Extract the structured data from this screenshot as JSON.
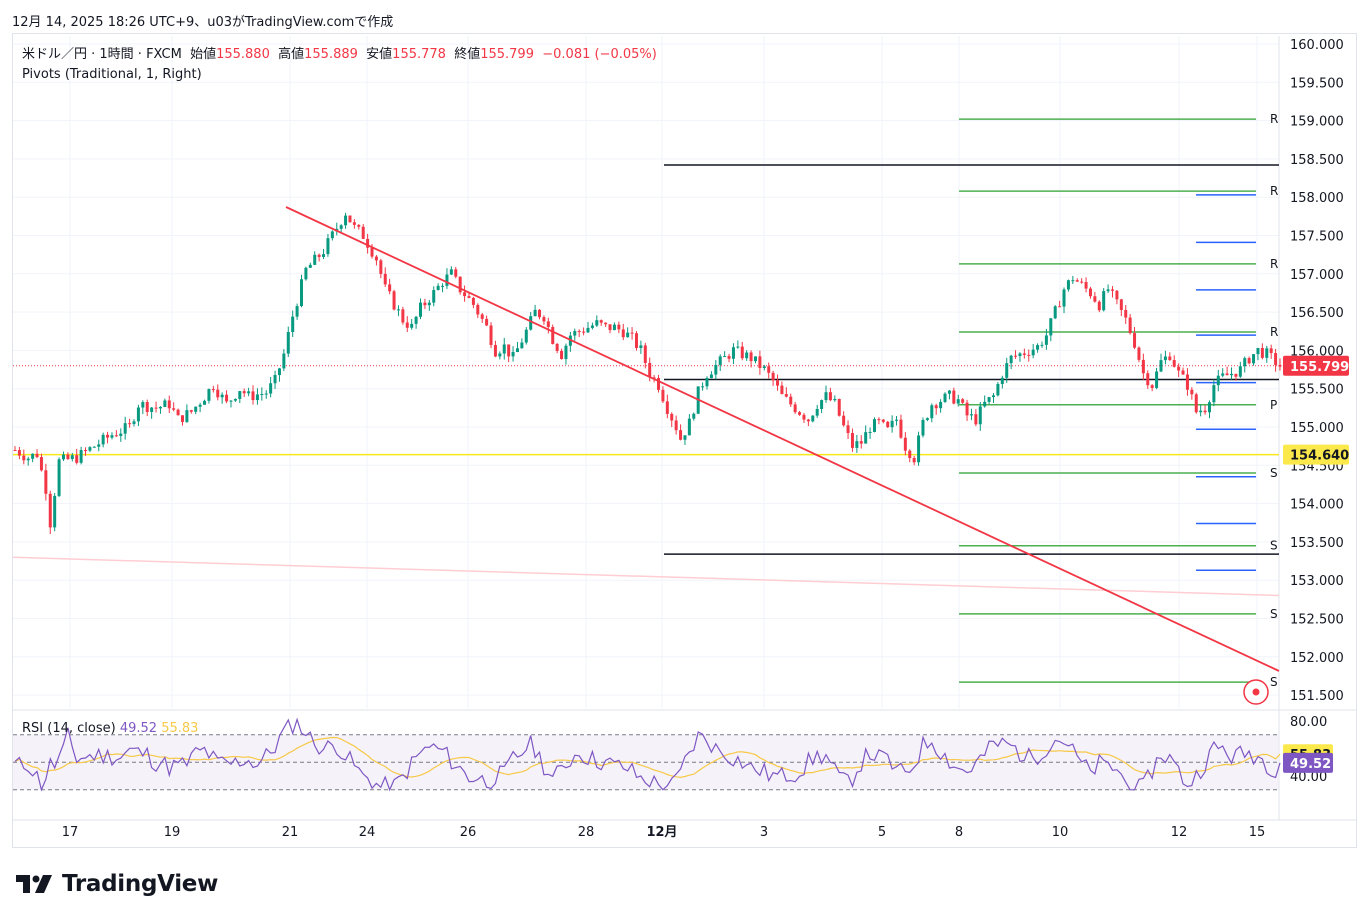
{
  "caption": "12月 14, 2025 18:26 UTC+9、u03がTradingView.comで作成",
  "legend": {
    "symbol": "米ドル／円 · 1時間 · FXCM",
    "open_label": "始値",
    "open": "155.880",
    "high_label": "高値",
    "high": "155.889",
    "low_label": "安値",
    "low": "155.778",
    "close_label": "終値",
    "close": "155.799",
    "change": "−0.081 (−0.05%)",
    "indicator": "Pivots (Traditional, 1, Right)"
  },
  "rsi_legend": {
    "label": "RSI (14, close)",
    "rsi": "49.52",
    "ma": "55.83"
  },
  "brand": "TradingView",
  "colors": {
    "up": "#089981",
    "down": "#f23645",
    "trend": "#f23645",
    "pivot_green": "#4caf50",
    "pivot_blue": "#2962ff",
    "support": "#f7e81a",
    "rsi": "#7e57c2",
    "rsi_ma": "#f7c948"
  },
  "chart_data": [
    {
      "type": "candlestick",
      "symbol": "USDJPY",
      "timeframe": "1時間",
      "ylim": [
        151.3,
        160.15
      ],
      "y_ticks": [
        "160.000",
        "159.500",
        "159.000",
        "158.500",
        "158.000",
        "157.500",
        "157.000",
        "156.500",
        "156.000",
        "155.500",
        "155.000",
        "154.500",
        "154.000",
        "153.500",
        "153.000",
        "152.500",
        "152.000",
        "151.500"
      ],
      "x_ticks": [
        "17",
        "19",
        "21",
        "24",
        "26",
        "28",
        "12月",
        "3",
        "5",
        "8",
        "10",
        "12",
        "15"
      ],
      "price_path": [
        [
          0,
          154.7
        ],
        [
          3,
          154.6
        ],
        [
          5,
          154.65
        ],
        [
          7,
          154.2
        ],
        [
          8,
          153.75
        ],
        [
          10,
          154.55
        ],
        [
          14,
          154.6
        ],
        [
          18,
          154.75
        ],
        [
          22,
          154.9
        ],
        [
          26,
          155.0
        ],
        [
          28,
          155.3
        ],
        [
          32,
          155.25
        ],
        [
          35,
          155.3
        ],
        [
          37,
          155.1
        ],
        [
          40,
          155.2
        ],
        [
          43,
          155.4
        ],
        [
          45,
          155.55
        ],
        [
          48,
          155.3
        ],
        [
          51,
          155.5
        ],
        [
          53,
          155.4
        ],
        [
          57,
          155.45
        ],
        [
          59,
          155.6
        ],
        [
          61,
          155.95
        ],
        [
          63,
          156.45
        ],
        [
          66,
          157.05
        ],
        [
          70,
          157.3
        ],
        [
          73,
          157.6
        ],
        [
          75,
          157.8
        ],
        [
          77,
          157.6
        ],
        [
          79,
          157.5
        ],
        [
          82,
          157.2
        ],
        [
          84,
          156.8
        ],
        [
          86,
          156.6
        ],
        [
          88,
          156.4
        ],
        [
          90,
          156.3
        ],
        [
          92,
          156.55
        ],
        [
          95,
          156.75
        ],
        [
          97,
          156.9
        ],
        [
          99,
          157.0
        ],
        [
          101,
          156.8
        ],
        [
          104,
          156.6
        ],
        [
          107,
          156.3
        ],
        [
          109,
          156.0
        ],
        [
          111,
          156.05
        ],
        [
          113,
          155.9
        ],
        [
          116,
          156.25
        ],
        [
          118,
          156.5
        ],
        [
          120,
          156.45
        ],
        [
          122,
          156.15
        ],
        [
          124,
          155.95
        ],
        [
          126,
          156.2
        ],
        [
          130,
          156.3
        ],
        [
          132,
          156.35
        ],
        [
          134,
          156.3
        ],
        [
          136,
          156.3
        ],
        [
          138,
          156.25
        ],
        [
          140,
          156.15
        ],
        [
          142,
          156.0
        ],
        [
          144,
          155.7
        ],
        [
          146,
          155.55
        ],
        [
          148,
          155.25
        ],
        [
          150,
          155.0
        ],
        [
          151,
          154.85
        ],
        [
          153,
          155.05
        ],
        [
          155,
          155.45
        ],
        [
          157,
          155.7
        ],
        [
          160,
          155.85
        ],
        [
          163,
          156.0
        ],
        [
          165,
          155.95
        ],
        [
          167,
          155.9
        ],
        [
          170,
          155.75
        ],
        [
          172,
          155.6
        ],
        [
          174,
          155.4
        ],
        [
          176,
          155.3
        ],
        [
          178,
          155.2
        ],
        [
          180,
          155.1
        ],
        [
          182,
          155.3
        ],
        [
          184,
          155.4
        ],
        [
          186,
          155.3
        ],
        [
          188,
          155.0
        ],
        [
          190,
          154.75
        ],
        [
          192,
          154.8
        ],
        [
          194,
          155.0
        ],
        [
          196,
          155.05
        ],
        [
          198,
          154.95
        ],
        [
          200,
          155.1
        ],
        [
          202,
          154.75
        ],
        [
          204,
          154.6
        ],
        [
          206,
          155.05
        ],
        [
          208,
          155.3
        ],
        [
          210,
          155.35
        ],
        [
          212,
          155.4
        ],
        [
          214,
          155.35
        ],
        [
          216,
          155.15
        ],
        [
          218,
          155.1
        ],
        [
          220,
          155.3
        ],
        [
          222,
          155.4
        ],
        [
          224,
          155.7
        ],
        [
          226,
          155.9
        ],
        [
          228,
          155.95
        ],
        [
          230,
          156.0
        ],
        [
          232,
          156.05
        ],
        [
          234,
          156.2
        ],
        [
          236,
          156.5
        ],
        [
          238,
          156.8
        ],
        [
          240,
          156.95
        ],
        [
          242,
          156.85
        ],
        [
          244,
          156.75
        ],
        [
          246,
          156.6
        ],
        [
          248,
          156.8
        ],
        [
          250,
          156.6
        ],
        [
          252,
          156.4
        ],
        [
          254,
          156.1
        ],
        [
          256,
          155.7
        ],
        [
          258,
          155.55
        ],
        [
          260,
          155.85
        ],
        [
          262,
          155.95
        ],
        [
          264,
          155.7
        ],
        [
          266,
          155.55
        ],
        [
          268,
          155.2
        ],
        [
          270,
          155.25
        ],
        [
          272,
          155.55
        ],
        [
          274,
          155.65
        ],
        [
          276,
          155.7
        ],
        [
          278,
          155.75
        ],
        [
          280,
          155.9
        ],
        [
          282,
          156.0
        ],
        [
          284,
          155.95
        ],
        [
          286,
          155.85
        ],
        [
          287,
          155.8
        ]
      ],
      "pivots": {
        "green": [
          {
            "label": "R",
            "value": 159.02
          },
          {
            "label": "R",
            "value": 158.08
          },
          {
            "label": "R",
            "value": 157.13
          },
          {
            "label": "R",
            "value": 156.24
          },
          {
            "label": "P",
            "value": 155.29
          },
          {
            "label": "S",
            "value": 154.4
          },
          {
            "label": "S",
            "value": 153.45
          },
          {
            "label": "S",
            "value": 152.56
          },
          {
            "label": "S",
            "value": 151.67
          }
        ],
        "black": [
          158.42,
          155.62,
          153.34
        ],
        "blue": [
          158.03,
          157.41,
          156.79,
          156.2,
          155.58,
          154.97,
          154.35,
          153.74,
          153.13
        ]
      },
      "support_line": 154.64,
      "last_price": 155.799,
      "trendline": [
        [
          157.9
        ],
        [
          151.8
        ]
      ],
      "lower_line": [
        153.3,
        152.8
      ]
    },
    {
      "type": "line",
      "name": "RSI",
      "ylim": [
        30,
        85
      ],
      "y_ticks": [
        "80.00",
        "40.00"
      ],
      "bands": [
        70,
        50,
        30
      ],
      "last_rsi": 49.52,
      "last_ma": 55.83
    }
  ]
}
